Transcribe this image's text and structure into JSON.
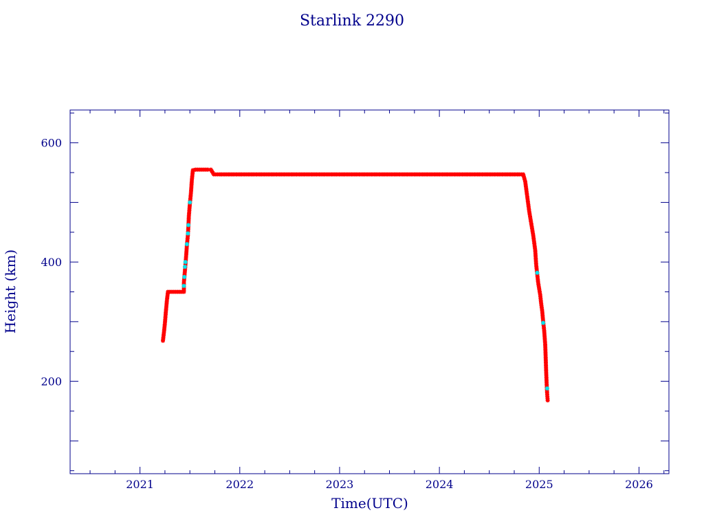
{
  "chart_data": {
    "type": "scatter",
    "title": "Starlink 2290",
    "xlabel": "Time(UTC)",
    "ylabel": "Height (km)",
    "xlim": [
      2020.3,
      2026.3
    ],
    "ylim": [
      45,
      655
    ],
    "x_ticks": [
      2021,
      2022,
      2023,
      2024,
      2025,
      2026
    ],
    "y_ticks": [
      200,
      400,
      600
    ],
    "y_minor_step": 50,
    "x_minor_step": 0.25,
    "grid": false,
    "colors": {
      "axis": "#00008b",
      "text": "#00008b",
      "primary": "#ff0000",
      "secondary": "#00e5ee"
    },
    "series": [
      {
        "values": [
          [
            2021.23,
            268
          ],
          [
            2021.24,
            282
          ],
          [
            2021.25,
            298
          ],
          [
            2021.26,
            318
          ],
          [
            2021.27,
            336
          ],
          [
            2021.28,
            350
          ],
          [
            2021.3,
            350
          ],
          [
            2021.32,
            350
          ],
          [
            2021.34,
            350
          ],
          [
            2021.36,
            350
          ],
          [
            2021.38,
            350
          ],
          [
            2021.4,
            350
          ],
          [
            2021.42,
            350
          ],
          [
            2021.44,
            350
          ],
          [
            2021.44,
            366
          ],
          [
            2021.45,
            385
          ],
          [
            2021.46,
            405
          ],
          [
            2021.47,
            428
          ],
          [
            2021.48,
            445
          ],
          [
            2021.485,
            460
          ],
          [
            2021.49,
            478
          ],
          [
            2021.5,
            498
          ],
          [
            2021.51,
            515
          ],
          [
            2021.52,
            538
          ],
          [
            2021.53,
            554
          ],
          [
            2021.56,
            555
          ],
          [
            2021.6,
            555
          ],
          [
            2021.64,
            555
          ],
          [
            2021.68,
            555
          ],
          [
            2021.71,
            555
          ],
          [
            2021.74,
            547
          ],
          [
            2021.8,
            547
          ],
          [
            2021.9,
            547
          ],
          [
            2022.0,
            547
          ],
          [
            2022.1,
            547
          ],
          [
            2022.2,
            547
          ],
          [
            2022.3,
            547
          ],
          [
            2022.4,
            547
          ],
          [
            2022.5,
            547
          ],
          [
            2022.6,
            547
          ],
          [
            2022.7,
            547
          ],
          [
            2022.8,
            547
          ],
          [
            2022.9,
            547
          ],
          [
            2023.0,
            547
          ],
          [
            2023.1,
            547
          ],
          [
            2023.2,
            547
          ],
          [
            2023.3,
            547
          ],
          [
            2023.4,
            547
          ],
          [
            2023.5,
            547
          ],
          [
            2023.6,
            547
          ],
          [
            2023.7,
            547
          ],
          [
            2023.8,
            547
          ],
          [
            2023.9,
            547
          ],
          [
            2024.0,
            547
          ],
          [
            2024.1,
            547
          ],
          [
            2024.2,
            547
          ],
          [
            2024.3,
            547
          ],
          [
            2024.4,
            547
          ],
          [
            2024.5,
            547
          ],
          [
            2024.6,
            547
          ],
          [
            2024.7,
            547
          ],
          [
            2024.8,
            547
          ],
          [
            2024.84,
            547
          ],
          [
            2024.86,
            535
          ],
          [
            2024.88,
            510
          ],
          [
            2024.9,
            485
          ],
          [
            2024.92,
            465
          ],
          [
            2024.94,
            445
          ],
          [
            2024.96,
            420
          ],
          [
            2024.97,
            395
          ],
          [
            2024.99,
            365
          ],
          [
            2025.01,
            345
          ],
          [
            2025.02,
            330
          ],
          [
            2025.03,
            318
          ],
          [
            2025.04,
            300
          ],
          [
            2025.05,
            285
          ],
          [
            2025.06,
            262
          ],
          [
            2025.065,
            240
          ],
          [
            2025.07,
            215
          ],
          [
            2025.075,
            195
          ],
          [
            2025.08,
            178
          ],
          [
            2025.085,
            168
          ]
        ]
      },
      {
        "values": [
          [
            2021.44,
            360
          ],
          [
            2021.445,
            375
          ],
          [
            2021.45,
            392
          ],
          [
            2021.455,
            400
          ],
          [
            2021.47,
            430
          ],
          [
            2021.48,
            448
          ],
          [
            2021.485,
            462
          ],
          [
            2021.5,
            500
          ],
          [
            2024.98,
            382
          ],
          [
            2025.04,
            298
          ],
          [
            2025.08,
            188
          ]
        ]
      }
    ]
  }
}
